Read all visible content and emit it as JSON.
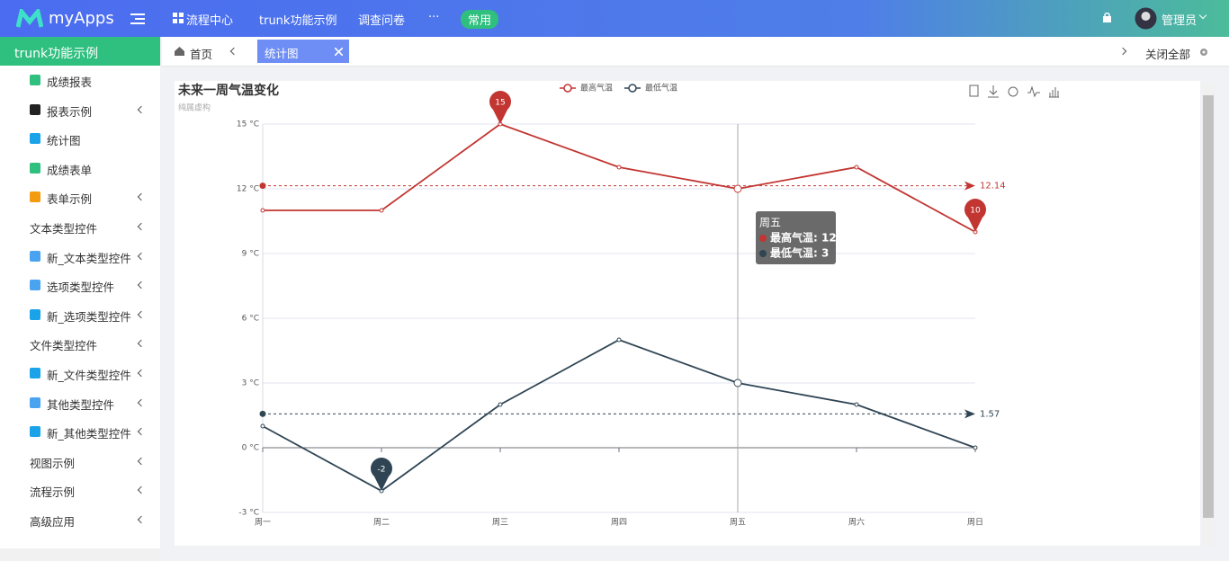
{
  "header": {
    "logo": "myApps",
    "nav": [
      "流程中心",
      "trunk功能示例",
      "调查问卷",
      "···"
    ],
    "badge": "常用",
    "user": "管理员"
  },
  "sidebar": {
    "title": "trunk功能示例",
    "items": [
      "成绩报表",
      "报表示例",
      "统计图",
      "成绩表单",
      "表单示例",
      "文本类型控件",
      "新_文本类型控件",
      "选项类型控件",
      "新_选项类型控件",
      "文件类型控件",
      "新_文件类型控件",
      "其他类型控件",
      "新_其他类型控件",
      "视图示例",
      "流程示例",
      "高级应用"
    ]
  },
  "tabs": {
    "home": "首页",
    "active": "统计图",
    "close_all": "关闭全部"
  },
  "chart_data": {
    "type": "line",
    "title": "未来一周气温变化",
    "subtitle": "纯属虚构",
    "categories": [
      "周一",
      "周二",
      "周三",
      "周四",
      "周五",
      "周六",
      "周日"
    ],
    "series": [
      {
        "name": "最高气温",
        "color": "#c23531",
        "values": [
          11,
          11,
          15,
          13,
          12,
          13,
          10
        ],
        "mark_points": {
          "max": 15,
          "min": 10
        },
        "mean_line": 12.14
      },
      {
        "name": "最低气温",
        "color": "#2f4554",
        "values": [
          1,
          -2,
          2,
          5,
          3,
          2,
          0
        ],
        "mark_points": {
          "min": -2
        },
        "mean_line": 1.57
      }
    ],
    "ylim": [
      -3,
      15
    ],
    "yticks": [
      {
        "value": -3,
        "label": "-3 °C"
      },
      {
        "value": 0,
        "label": "0 °C"
      },
      {
        "value": 3,
        "label": "3 °C"
      },
      {
        "value": 6,
        "label": "6 °C"
      },
      {
        "value": 9,
        "label": "9 °C"
      },
      {
        "value": 12,
        "label": "12 °C"
      },
      {
        "value": 15,
        "label": "15 °C"
      }
    ],
    "grid": true,
    "tooltip": {
      "title": "周五",
      "items": [
        "最高气温: 12",
        "最低气温: 3"
      ]
    }
  }
}
